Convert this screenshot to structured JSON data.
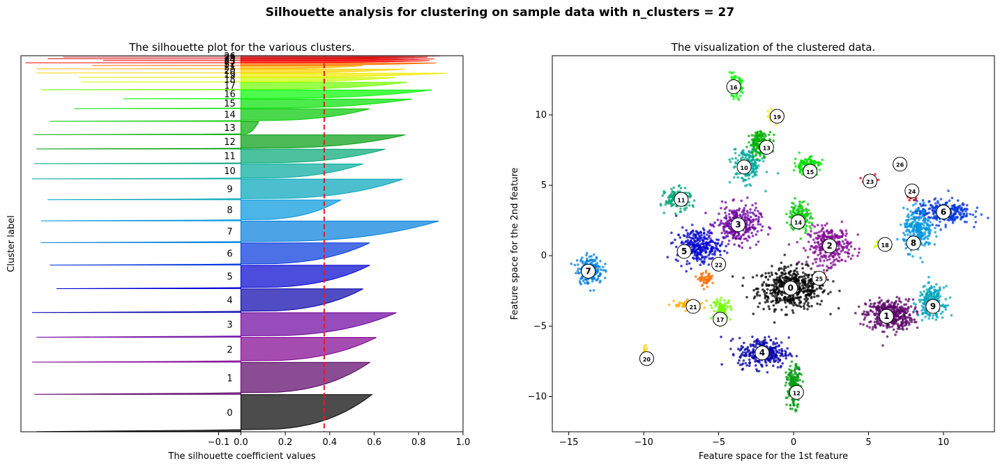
{
  "suptitle": "Silhouette analysis for clustering on sample data with n_clusters = 27",
  "chart_data": [
    {
      "type": "area",
      "title": "The silhouette plot for the various clusters.",
      "xlabel": "The silhouette coefficient values",
      "ylabel": "Cluster label",
      "xlim": [
        -1.0,
        1.0
      ],
      "xticks": [
        -0.1,
        0,
        0.2,
        0.4,
        0.6,
        0.8,
        1.0
      ],
      "xtick_labels": [
        "−0.1",
        "0.0",
        "0.2",
        "0.4",
        "0.6",
        "0.8",
        "1.0"
      ],
      "average_silhouette": 0.375,
      "average_line_color": "#e41a1c",
      "grid": false,
      "clusters": [
        {
          "label": "0",
          "size": 1630,
          "min": -0.92,
          "max": 0.59
        },
        {
          "label": "1",
          "size": 1410,
          "min": -0.93,
          "max": 0.58
        },
        {
          "label": "2",
          "size": 1090,
          "min": -0.94,
          "max": 0.61
        },
        {
          "label": "3",
          "size": 1080,
          "min": -0.92,
          "max": 0.7
        },
        {
          "label": "4",
          "size": 1040,
          "min": -0.94,
          "max": 0.55
        },
        {
          "label": "5",
          "size": 1030,
          "min": -0.83,
          "max": 0.58
        },
        {
          "label": "6",
          "size": 980,
          "min": -0.86,
          "max": 0.58
        },
        {
          "label": "7",
          "size": 950,
          "min": -0.9,
          "max": 0.89
        },
        {
          "label": "8",
          "size": 920,
          "min": -0.9,
          "max": 0.45
        },
        {
          "label": "9",
          "size": 910,
          "min": -0.87,
          "max": 0.73
        },
        {
          "label": "10",
          "size": 660,
          "min": -0.94,
          "max": 0.55
        },
        {
          "label": "11",
          "size": 640,
          "min": -0.93,
          "max": 0.65
        },
        {
          "label": "12",
          "size": 620,
          "min": -0.92,
          "max": 0.74
        },
        {
          "label": "13",
          "size": 580,
          "min": -0.93,
          "max": 0.08
        },
        {
          "label": "14",
          "size": 550,
          "min": -0.86,
          "max": 0.58
        },
        {
          "label": "15",
          "size": 420,
          "min": -0.75,
          "max": 0.77
        },
        {
          "label": "16",
          "size": 390,
          "min": -0.53,
          "max": 0.86
        },
        {
          "label": "17",
          "size": 330,
          "min": -0.9,
          "max": 0.75
        },
        {
          "label": "18",
          "size": 200,
          "min": -0.72,
          "max": 0.7
        },
        {
          "label": "19",
          "size": 180,
          "min": -0.73,
          "max": 0.93
        },
        {
          "label": "20",
          "size": 170,
          "min": -0.92,
          "max": 0.74
        },
        {
          "label": "21",
          "size": 140,
          "min": -0.92,
          "max": 0.55
        },
        {
          "label": "22",
          "size": 110,
          "min": -0.67,
          "max": 0.88
        },
        {
          "label": "23",
          "size": 90,
          "min": -0.97,
          "max": 0.85
        },
        {
          "label": "24",
          "size": 70,
          "min": -0.62,
          "max": 0.87
        },
        {
          "label": "25",
          "size": 60,
          "min": -0.87,
          "max": 0.84
        },
        {
          "label": "26",
          "size": 50,
          "min": -0.8,
          "max": 0.9
        }
      ]
    },
    {
      "type": "scatter",
      "title": "The visualization of the clustered data.",
      "xlabel": "Feature space for the 1st feature",
      "ylabel": "Feature space for the 2nd feature",
      "xlim": [
        -16.1,
        13.4
      ],
      "ylim": [
        -12.5,
        14.2
      ],
      "xticks": [
        -15,
        -10,
        -5,
        0,
        5,
        10
      ],
      "xtick_labels": [
        "−15",
        "−10",
        "−5",
        "0",
        "5",
        "10"
      ],
      "yticks": [
        -10,
        -5,
        0,
        5,
        10
      ],
      "ytick_labels": [
        "−10",
        "−5",
        "0",
        "5",
        "10"
      ],
      "grid": false,
      "clusters": [
        {
          "label": "0",
          "center": [
            -0.1,
            -2.3
          ],
          "spread": [
            1.9,
            1.2
          ],
          "n": 520
        },
        {
          "label": "1",
          "center": [
            6.4,
            -4.2
          ],
          "spread": [
            1.3,
            0.9
          ],
          "n": 420
        },
        {
          "label": "2",
          "center": [
            2.4,
            0.7
          ],
          "spread": [
            1.2,
            1.1
          ],
          "n": 300
        },
        {
          "label": "3",
          "center": [
            -3.7,
            2.2
          ],
          "spread": [
            1.2,
            1.1
          ],
          "n": 300
        },
        {
          "label": "4",
          "center": [
            -2.0,
            -6.9
          ],
          "spread": [
            1.4,
            0.9
          ],
          "n": 300
        },
        {
          "label": "5",
          "center": [
            -6.4,
            0.7
          ],
          "spread": [
            1.2,
            1.0
          ],
          "n": 280
        },
        {
          "label": "6",
          "center": [
            10.0,
            3.1
          ],
          "spread": [
            1.5,
            0.7
          ],
          "n": 280
        },
        {
          "label": "7",
          "center": [
            -13.6,
            -1.0
          ],
          "spread": [
            0.7,
            0.8
          ],
          "n": 200
        },
        {
          "label": "8",
          "center": [
            8.3,
            1.8
          ],
          "spread": [
            0.8,
            1.2
          ],
          "n": 250
        },
        {
          "label": "9",
          "center": [
            9.2,
            -3.3
          ],
          "spread": [
            0.7,
            0.9
          ],
          "n": 250
        },
        {
          "label": "10",
          "center": [
            -3.1,
            6.4
          ],
          "spread": [
            0.8,
            1.0
          ],
          "n": 200
        },
        {
          "label": "11",
          "center": [
            -7.7,
            4.0
          ],
          "spread": [
            0.7,
            0.6
          ],
          "n": 180
        },
        {
          "label": "12",
          "center": [
            0.0,
            -9.3
          ],
          "spread": [
            0.4,
            1.2
          ],
          "n": 170
        },
        {
          "label": "13",
          "center": [
            -2.2,
            8.0
          ],
          "spread": [
            0.6,
            0.7
          ],
          "n": 160
        },
        {
          "label": "14",
          "center": [
            0.4,
            2.8
          ],
          "spread": [
            0.6,
            0.9
          ],
          "n": 160
        },
        {
          "label": "15",
          "center": [
            0.9,
            6.4
          ],
          "spread": [
            0.7,
            0.5
          ],
          "n": 140
        },
        {
          "label": "16",
          "center": [
            -3.9,
            12.0
          ],
          "spread": [
            0.4,
            0.6
          ],
          "n": 110
        },
        {
          "label": "17",
          "center": [
            -4.8,
            -3.8
          ],
          "spread": [
            0.5,
            0.6
          ],
          "n": 90
        },
        {
          "label": "18",
          "center": [
            6.0,
            0.8
          ],
          "spread": [
            0.4,
            0.3
          ],
          "n": 70
        },
        {
          "label": "19",
          "center": [
            -1.2,
            9.9
          ],
          "spread": [
            0.4,
            0.3
          ],
          "n": 60
        },
        {
          "label": "20",
          "center": [
            -9.9,
            -7.0
          ],
          "spread": [
            0.15,
            0.4
          ],
          "n": 40
        },
        {
          "label": "21",
          "center": [
            -7.0,
            -3.5
          ],
          "spread": [
            0.8,
            0.3
          ],
          "n": 70
        },
        {
          "label": "22",
          "center": [
            -5.8,
            -1.7
          ],
          "spread": [
            0.4,
            0.4
          ],
          "n": 50
        },
        {
          "label": "23",
          "center": [
            5.0,
            5.4
          ],
          "spread": [
            0.4,
            0.3
          ],
          "n": 35
        },
        {
          "label": "24",
          "center": [
            7.9,
            4.3
          ],
          "spread": [
            0.3,
            0.3
          ],
          "n": 30
        },
        {
          "label": "25",
          "center": [
            1.8,
            -1.6
          ],
          "spread": [
            0.3,
            0.3
          ],
          "n": 25
        },
        {
          "label": "26",
          "center": [
            7.1,
            6.5
          ],
          "spread": [
            0.2,
            0.2
          ],
          "n": 0
        }
      ],
      "center_markers": [
        {
          "label": "0",
          "x": -0.2,
          "y": -2.3
        },
        {
          "label": "1",
          "x": 6.2,
          "y": -4.3
        },
        {
          "label": "2",
          "x": 2.4,
          "y": 0.7
        },
        {
          "label": "3",
          "x": -3.7,
          "y": 2.2
        },
        {
          "label": "4",
          "x": -2.1,
          "y": -6.9
        },
        {
          "label": "5",
          "x": -7.3,
          "y": 0.3
        },
        {
          "label": "6",
          "x": 10.0,
          "y": 3.1
        },
        {
          "label": "7",
          "x": -13.7,
          "y": -1.1
        },
        {
          "label": "8",
          "x": 8.0,
          "y": 0.9
        },
        {
          "label": "9",
          "x": 9.3,
          "y": -3.6
        },
        {
          "label": "10",
          "x": -3.3,
          "y": 6.3
        },
        {
          "label": "11",
          "x": -7.5,
          "y": 4.0
        },
        {
          "label": "12",
          "x": 0.2,
          "y": -9.7
        },
        {
          "label": "13",
          "x": -1.8,
          "y": 7.7
        },
        {
          "label": "14",
          "x": 0.3,
          "y": 2.4
        },
        {
          "label": "15",
          "x": 1.1,
          "y": 6.0
        },
        {
          "label": "16",
          "x": -4.0,
          "y": 12.0
        },
        {
          "label": "17",
          "x": -4.9,
          "y": -4.5
        },
        {
          "label": "18",
          "x": 6.1,
          "y": 0.8
        },
        {
          "label": "19",
          "x": -1.1,
          "y": 9.9
        },
        {
          "label": "20",
          "x": -9.8,
          "y": -7.3
        },
        {
          "label": "21",
          "x": -6.7,
          "y": -3.6
        },
        {
          "label": "22",
          "x": -5.0,
          "y": -0.6
        },
        {
          "label": "23",
          "x": 5.1,
          "y": 5.3
        },
        {
          "label": "24",
          "x": 7.9,
          "y": 4.6
        },
        {
          "label": "25",
          "x": 1.7,
          "y": -1.6
        },
        {
          "label": "26",
          "x": 7.1,
          "y": 6.5
        }
      ]
    }
  ]
}
